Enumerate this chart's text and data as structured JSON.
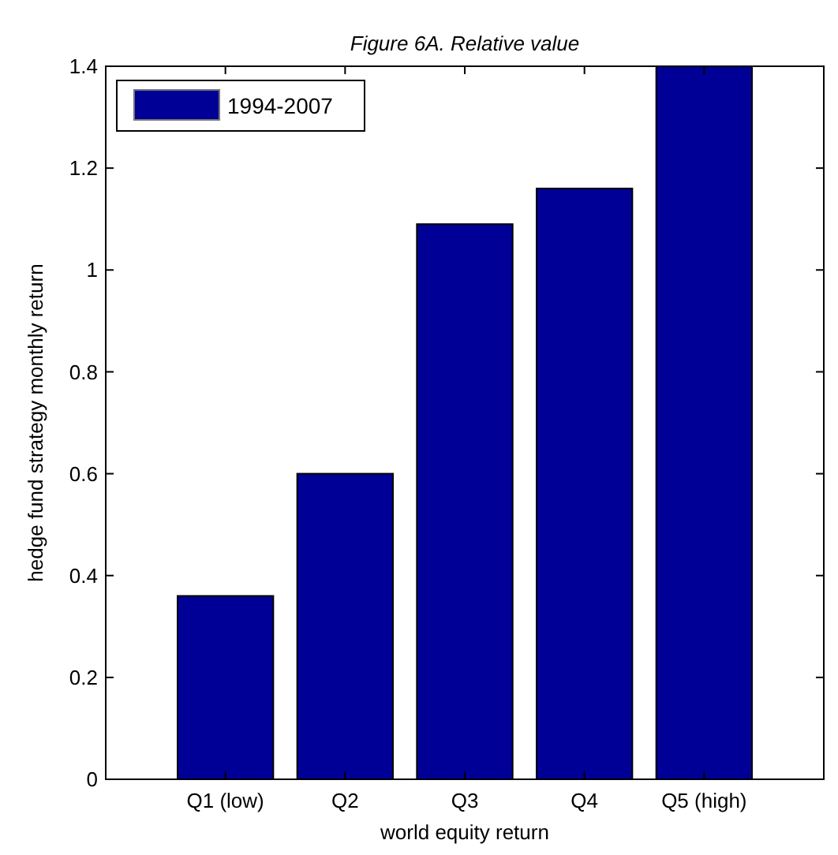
{
  "chart_data": {
    "type": "bar",
    "title": "Figure 6A. Relative value",
    "xlabel": "world equity return",
    "ylabel": "hedge fund strategy monthly return",
    "categories": [
      "Q1 (low)",
      "Q2",
      "Q3",
      "Q4",
      "Q5 (high)"
    ],
    "series": [
      {
        "name": "1994-2007",
        "color": "#000096",
        "values": [
          0.36,
          0.6,
          1.09,
          1.16,
          1.4
        ]
      }
    ],
    "ylim": [
      0,
      1.4
    ],
    "yticks": [
      0,
      0.2,
      0.4,
      0.6,
      0.8,
      1,
      1.2,
      1.4
    ],
    "grid": false,
    "legend": "top left"
  }
}
